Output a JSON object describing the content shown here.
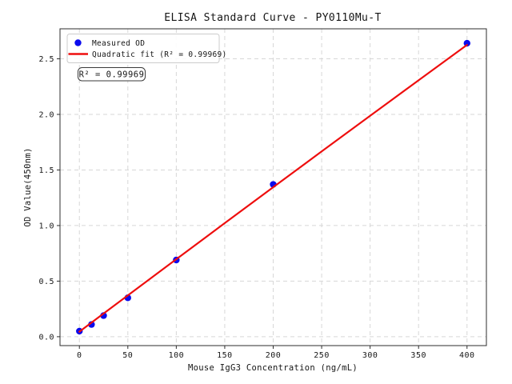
{
  "figure": {
    "title": "ELISA Standard Curve - PY0110Mu-T",
    "annotation": "R² = 0.99969",
    "legend": [
      {
        "label": "Measured OD",
        "marker": "dot",
        "color": "#0b0bee"
      },
      {
        "label": "Quadratic fit (R² = 0.99969)",
        "marker": "line",
        "color": "#ee0e0e"
      }
    ]
  },
  "chart_data": {
    "type": "scatter",
    "title": "ELISA Standard Curve - PY0110Mu-T",
    "xlabel": "Mouse IgG3 Concentration (ng/mL)",
    "ylabel": "OD Value(450nm)",
    "xlim": [
      -20,
      420
    ],
    "ylim": [
      -0.08,
      2.77
    ],
    "xticks": [
      0,
      50,
      100,
      150,
      200,
      250,
      300,
      350,
      400
    ],
    "xtick_labels": [
      "0",
      "50",
      "100",
      "150",
      "200",
      "250",
      "300",
      "350",
      "400"
    ],
    "yticks": [
      0.0,
      0.5,
      1.0,
      1.5,
      2.0,
      2.5
    ],
    "ytick_labels": [
      "0.0",
      "0.5",
      "1.0",
      "1.5",
      "2.0",
      "2.5"
    ],
    "grid": true,
    "legend_position": "upper left",
    "r_squared": "0.99969",
    "annotations": [
      {
        "text": "R² = 0.99969"
      }
    ],
    "series": [
      {
        "name": "Measured OD",
        "type": "scatter",
        "color": "#0b0bee",
        "x": [
          0,
          12.5,
          25,
          50,
          100,
          200,
          400
        ],
        "y": [
          0.05,
          0.11,
          0.19,
          0.35,
          0.69,
          1.37,
          2.64
        ]
      },
      {
        "name": "Quadratic fit (R² = 0.99969)",
        "type": "line",
        "color": "#ee0e0e",
        "x": [
          0,
          50,
          100,
          150,
          200,
          250,
          300,
          350,
          400
        ],
        "y": [
          0.045,
          0.372,
          0.697,
          1.022,
          1.345,
          1.667,
          1.987,
          2.307,
          2.625
        ]
      }
    ]
  }
}
